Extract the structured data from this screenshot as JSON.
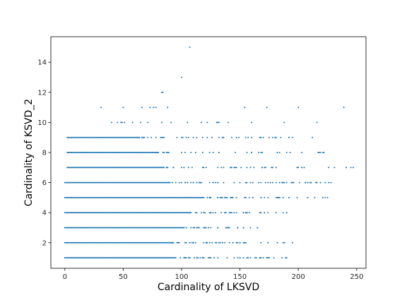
{
  "chart_data": {
    "type": "scatter",
    "title": "",
    "xlabel": "Cardinality of LKSVD",
    "ylabel": "Cardinality of KSVD_2",
    "xlim": [
      -12,
      258
    ],
    "ylim": [
      0.3,
      15.7
    ],
    "xticks": [
      0,
      50,
      100,
      150,
      200,
      250
    ],
    "yticks": [
      2,
      4,
      6,
      8,
      10,
      12,
      14
    ],
    "grid": false,
    "legend": "none",
    "marker_color": "#1f77b4",
    "band_ranges": [
      {
        "y": 1,
        "dense_to": 95,
        "sparse_to": 190
      },
      {
        "y": 2,
        "dense_to": 92,
        "sparse_to": 195
      },
      {
        "y": 3,
        "dense_to": 102,
        "sparse_to": 165
      },
      {
        "y": 4,
        "dense_to": 108,
        "sparse_to": 190
      },
      {
        "y": 5,
        "dense_to": 118,
        "sparse_to": 225
      },
      {
        "y": 6,
        "dense_to": 88,
        "sparse_to": 228
      },
      {
        "y": 7,
        "dense_to": 85,
        "sparse_to": 247
      },
      {
        "y": 8,
        "dense_to": 78,
        "sparse_to": 222
      },
      {
        "y": 9,
        "dense_to": 62,
        "sparse_to": 195
      }
    ],
    "points": [
      [
        107,
        15
      ],
      [
        100,
        13
      ],
      [
        83,
        12
      ],
      [
        84,
        12
      ],
      [
        31,
        11
      ],
      [
        50,
        11
      ],
      [
        66,
        11
      ],
      [
        73,
        11
      ],
      [
        76,
        11
      ],
      [
        78,
        11
      ],
      [
        88,
        11
      ],
      [
        154,
        11
      ],
      [
        173,
        11
      ],
      [
        200,
        11
      ],
      [
        239,
        11
      ],
      [
        40,
        10
      ],
      [
        45,
        10
      ],
      [
        48,
        10
      ],
      [
        49,
        10
      ],
      [
        51,
        10
      ],
      [
        58,
        10
      ],
      [
        65,
        10
      ],
      [
        71,
        10
      ],
      [
        83,
        10
      ],
      [
        91,
        10
      ],
      [
        105,
        10
      ],
      [
        117,
        10
      ],
      [
        122,
        10
      ],
      [
        130,
        10
      ],
      [
        131,
        10
      ],
      [
        132,
        10
      ],
      [
        140,
        10
      ],
      [
        160,
        10
      ],
      [
        188,
        10
      ],
      [
        216,
        10
      ],
      [
        212,
        9
      ],
      [
        192,
        9
      ],
      [
        185,
        9
      ],
      [
        178,
        9
      ],
      [
        175,
        9
      ],
      [
        168,
        9
      ],
      [
        160,
        9
      ],
      [
        149,
        9
      ],
      [
        143,
        9
      ],
      [
        135,
        9
      ],
      [
        118,
        9
      ],
      [
        113,
        9
      ],
      [
        106,
        9
      ],
      [
        100,
        9
      ]
    ]
  }
}
